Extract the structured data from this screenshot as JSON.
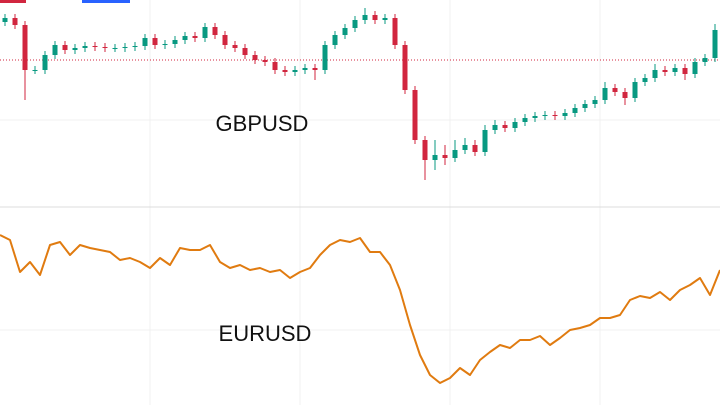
{
  "chart_data": [
    {
      "type": "candlestick",
      "title": "GBPUSD",
      "up_color": "#089981",
      "down_color": "#d1263f",
      "ylim": [
        0,
        200
      ],
      "price_line": 140,
      "price_line_color": "#d1263f",
      "open": [
        178,
        182,
        175,
        130,
        130,
        145,
        155,
        150,
        152,
        154,
        153,
        152,
        152,
        153,
        154,
        162,
        155,
        156,
        160,
        164,
        162,
        173,
        165,
        155,
        152,
        145,
        140,
        138,
        130,
        128,
        130,
        132,
        130,
        155,
        165,
        172,
        180,
        185,
        180,
        182,
        155,
        110,
        60,
        40,
        45,
        42,
        50,
        55,
        48,
        70,
        75,
        72,
        78,
        82,
        84,
        85,
        84,
        87,
        92,
        96,
        100,
        112,
        108,
        102,
        118,
        122,
        130,
        128,
        132,
        126,
        138,
        142
      ],
      "high": [
        186,
        186,
        179,
        134,
        149,
        159,
        159,
        156,
        158,
        158,
        157,
        156,
        157,
        158,
        166,
        166,
        160,
        164,
        168,
        168,
        177,
        177,
        169,
        159,
        156,
        149,
        144,
        142,
        134,
        134,
        136,
        136,
        159,
        169,
        176,
        184,
        192,
        189,
        186,
        186,
        159,
        114,
        64,
        60,
        55,
        60,
        62,
        60,
        75,
        80,
        79,
        82,
        86,
        88,
        89,
        89,
        91,
        96,
        100,
        104,
        118,
        116,
        112,
        122,
        126,
        136,
        134,
        136,
        136,
        142,
        146,
        176
      ],
      "low": [
        174,
        171,
        100,
        126,
        126,
        141,
        146,
        146,
        148,
        149,
        148,
        148,
        148,
        149,
        150,
        151,
        151,
        152,
        156,
        158,
        158,
        161,
        151,
        148,
        141,
        136,
        134,
        126,
        124,
        124,
        126,
        120,
        126,
        151,
        161,
        168,
        176,
        176,
        176,
        151,
        106,
        56,
        20,
        30,
        35,
        38,
        46,
        44,
        44,
        66,
        68,
        68,
        74,
        78,
        80,
        80,
        80,
        83,
        88,
        92,
        96,
        104,
        95,
        98,
        114,
        118,
        124,
        124,
        120,
        122,
        134,
        138
      ],
      "close": [
        182,
        175,
        130,
        130,
        145,
        155,
        150,
        152,
        154,
        153,
        152,
        152,
        153,
        154,
        162,
        155,
        156,
        160,
        164,
        162,
        173,
        165,
        155,
        152,
        145,
        140,
        138,
        130,
        128,
        130,
        132,
        130,
        155,
        165,
        172,
        180,
        185,
        180,
        182,
        155,
        110,
        60,
        40,
        45,
        42,
        50,
        55,
        48,
        70,
        75,
        72,
        78,
        82,
        84,
        85,
        84,
        87,
        92,
        96,
        100,
        112,
        108,
        102,
        118,
        122,
        130,
        128,
        132,
        126,
        138,
        142,
        170
      ]
    },
    {
      "type": "line",
      "title": "EURUSD",
      "color": "#e07b10",
      "ylim": [
        0,
        200
      ],
      "values": [
        165,
        160,
        128,
        138,
        125,
        155,
        158,
        145,
        155,
        152,
        150,
        148,
        140,
        142,
        138,
        132,
        142,
        135,
        152,
        150,
        150,
        155,
        138,
        132,
        135,
        130,
        132,
        128,
        130,
        122,
        128,
        132,
        145,
        155,
        160,
        158,
        162,
        148,
        148,
        135,
        110,
        75,
        45,
        25,
        17,
        22,
        32,
        25,
        40,
        48,
        55,
        52,
        60,
        60,
        64,
        55,
        62,
        70,
        72,
        75,
        82,
        82,
        85,
        100,
        104,
        102,
        108,
        100,
        110,
        115,
        122,
        105,
        130
      ]
    }
  ]
}
